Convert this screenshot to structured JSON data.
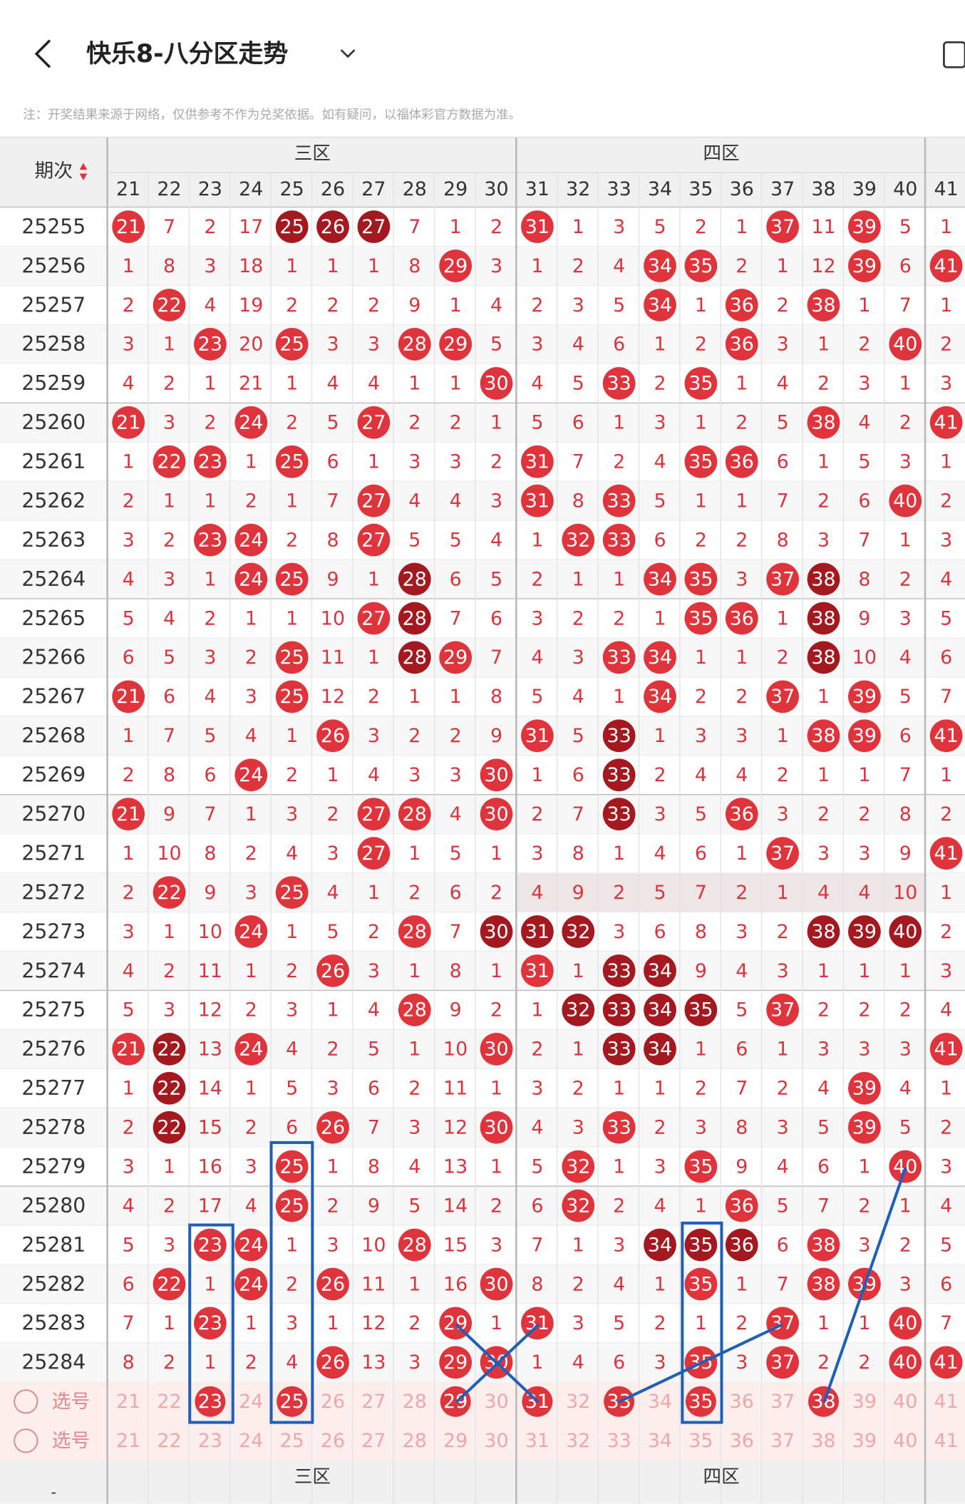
{
  "header": {
    "title": "快乐8-八分区走势",
    "note": "注：开奖结果来源于网络，仅供参考不作为兑奖依据。如有疑问，以福体彩官方数据为准。"
  },
  "table": {
    "period_label": "期次",
    "zones": [
      "三区",
      "四区"
    ],
    "columns": [
      21,
      22,
      23,
      24,
      25,
      26,
      27,
      28,
      29,
      30,
      31,
      32,
      33,
      34,
      35,
      36,
      37,
      38,
      39,
      40,
      41
    ],
    "rows": [
      {
        "period": "25255",
        "cells": [
          21,
          7,
          2,
          17,
          25,
          26,
          27,
          7,
          1,
          2,
          31,
          1,
          3,
          5,
          2,
          1,
          37,
          11,
          39,
          5,
          1
        ],
        "hits": [
          0,
          10,
          16,
          18
        ],
        "dark": [
          4,
          5,
          6
        ]
      },
      {
        "period": "25256",
        "cells": [
          1,
          8,
          3,
          18,
          1,
          1,
          1,
          8,
          29,
          3,
          1,
          2,
          4,
          34,
          35,
          2,
          1,
          12,
          39,
          6,
          41
        ],
        "hits": [
          8,
          13,
          14,
          18,
          20
        ],
        "dark": []
      },
      {
        "period": "25257",
        "cells": [
          2,
          22,
          4,
          19,
          2,
          2,
          2,
          9,
          1,
          4,
          2,
          3,
          5,
          34,
          1,
          36,
          2,
          38,
          1,
          7,
          1
        ],
        "hits": [
          1,
          13,
          15,
          17
        ],
        "dark": []
      },
      {
        "period": "25258",
        "cells": [
          3,
          1,
          23,
          20,
          25,
          3,
          3,
          28,
          29,
          5,
          3,
          4,
          6,
          1,
          2,
          36,
          3,
          1,
          2,
          40,
          2
        ],
        "hits": [
          2,
          4,
          7,
          8,
          15,
          19
        ],
        "dark": []
      },
      {
        "period": "25259",
        "cells": [
          4,
          2,
          1,
          21,
          1,
          4,
          4,
          1,
          1,
          30,
          4,
          5,
          33,
          2,
          35,
          1,
          4,
          2,
          3,
          1,
          3
        ],
        "hits": [
          9,
          12,
          14
        ],
        "dark": []
      },
      {
        "period": "25260",
        "cells": [
          21,
          3,
          2,
          24,
          2,
          5,
          27,
          2,
          2,
          1,
          5,
          6,
          1,
          3,
          1,
          2,
          5,
          38,
          4,
          2,
          41
        ],
        "hits": [
          0,
          3,
          6,
          17,
          20
        ],
        "dark": []
      },
      {
        "period": "25261",
        "cells": [
          1,
          22,
          23,
          1,
          25,
          6,
          1,
          3,
          3,
          2,
          31,
          7,
          2,
          4,
          35,
          36,
          6,
          1,
          5,
          3,
          1
        ],
        "hits": [
          1,
          2,
          4,
          10,
          14,
          15
        ],
        "dark": []
      },
      {
        "period": "25262",
        "cells": [
          2,
          1,
          1,
          2,
          1,
          7,
          27,
          4,
          4,
          3,
          31,
          8,
          33,
          5,
          1,
          1,
          7,
          2,
          6,
          40,
          2
        ],
        "hits": [
          6,
          10,
          12,
          19
        ],
        "dark": []
      },
      {
        "period": "25263",
        "cells": [
          3,
          2,
          23,
          24,
          2,
          8,
          27,
          5,
          5,
          4,
          1,
          32,
          33,
          6,
          2,
          2,
          8,
          3,
          7,
          1,
          3
        ],
        "hits": [
          2,
          3,
          6,
          11,
          12
        ],
        "dark": []
      },
      {
        "period": "25264",
        "cells": [
          4,
          3,
          1,
          24,
          25,
          9,
          1,
          28,
          6,
          5,
          2,
          1,
          1,
          34,
          35,
          3,
          37,
          38,
          8,
          2,
          4
        ],
        "hits": [
          3,
          4,
          13,
          14,
          16
        ],
        "dark": [
          7,
          17
        ]
      },
      {
        "period": "25265",
        "cells": [
          5,
          4,
          2,
          1,
          1,
          10,
          27,
          28,
          7,
          6,
          3,
          2,
          2,
          1,
          35,
          36,
          1,
          38,
          9,
          3,
          5
        ],
        "hits": [
          6,
          14,
          15
        ],
        "dark": [
          7,
          17
        ]
      },
      {
        "period": "25266",
        "cells": [
          6,
          5,
          3,
          2,
          25,
          11,
          1,
          28,
          29,
          7,
          4,
          3,
          33,
          34,
          1,
          1,
          2,
          38,
          10,
          4,
          6
        ],
        "hits": [
          4,
          8,
          12,
          13
        ],
        "dark": [
          7,
          17
        ]
      },
      {
        "period": "25267",
        "cells": [
          21,
          6,
          4,
          3,
          25,
          12,
          2,
          1,
          1,
          8,
          5,
          4,
          1,
          34,
          2,
          2,
          37,
          1,
          39,
          5,
          7
        ],
        "hits": [
          0,
          4,
          13,
          16,
          18
        ],
        "dark": []
      },
      {
        "period": "25268",
        "cells": [
          1,
          7,
          5,
          4,
          1,
          26,
          3,
          2,
          2,
          9,
          31,
          5,
          33,
          1,
          3,
          3,
          1,
          38,
          39,
          6,
          41
        ],
        "hits": [
          5,
          10,
          17,
          18,
          20
        ],
        "dark": [
          12
        ]
      },
      {
        "period": "25269",
        "cells": [
          2,
          8,
          6,
          24,
          2,
          1,
          4,
          3,
          3,
          30,
          1,
          6,
          33,
          2,
          4,
          4,
          2,
          1,
          1,
          7,
          1
        ],
        "hits": [
          3,
          9
        ],
        "dark": [
          12
        ]
      },
      {
        "period": "25270",
        "cells": [
          21,
          9,
          7,
          1,
          3,
          2,
          27,
          28,
          4,
          30,
          2,
          7,
          33,
          3,
          5,
          36,
          3,
          2,
          2,
          8,
          2
        ],
        "hits": [
          0,
          6,
          7,
          9,
          15
        ],
        "dark": [
          12
        ]
      },
      {
        "period": "25271",
        "cells": [
          1,
          10,
          8,
          2,
          4,
          3,
          27,
          1,
          5,
          1,
          3,
          8,
          1,
          4,
          6,
          1,
          37,
          3,
          3,
          9,
          41
        ],
        "hits": [
          6,
          16,
          20
        ],
        "dark": []
      },
      {
        "period": "25272",
        "cells": [
          2,
          22,
          9,
          3,
          25,
          4,
          1,
          2,
          6,
          2,
          4,
          9,
          2,
          5,
          7,
          2,
          1,
          4,
          4,
          10,
          1
        ],
        "hits": [
          1,
          4
        ],
        "dark": []
      },
      {
        "period": "25273",
        "cells": [
          3,
          1,
          10,
          24,
          1,
          5,
          2,
          28,
          7,
          30,
          31,
          32,
          3,
          6,
          8,
          3,
          2,
          38,
          39,
          40,
          2
        ],
        "hits": [
          3,
          7
        ],
        "dark": [
          9,
          10,
          11,
          17,
          18,
          19
        ]
      },
      {
        "period": "25274",
        "cells": [
          4,
          2,
          11,
          1,
          2,
          26,
          3,
          1,
          8,
          1,
          31,
          1,
          33,
          34,
          9,
          4,
          3,
          1,
          1,
          1,
          3
        ],
        "hits": [
          5,
          10
        ],
        "dark": [
          12,
          13
        ]
      },
      {
        "period": "25275",
        "cells": [
          5,
          3,
          12,
          2,
          3,
          1,
          4,
          28,
          9,
          2,
          1,
          32,
          33,
          34,
          35,
          5,
          37,
          2,
          2,
          2,
          4
        ],
        "hits": [
          7,
          16
        ],
        "dark": [
          11,
          12,
          13,
          14
        ]
      },
      {
        "period": "25276",
        "cells": [
          21,
          22,
          13,
          24,
          4,
          2,
          5,
          1,
          10,
          30,
          2,
          1,
          33,
          34,
          1,
          6,
          1,
          3,
          3,
          3,
          41
        ],
        "hits": [
          0,
          3,
          9,
          20
        ],
        "dark": [
          1,
          12,
          13
        ]
      },
      {
        "period": "25277",
        "cells": [
          1,
          22,
          14,
          1,
          5,
          3,
          6,
          2,
          11,
          1,
          3,
          2,
          1,
          1,
          2,
          7,
          2,
          4,
          39,
          4,
          1
        ],
        "hits": [
          18
        ],
        "dark": [
          1
        ]
      },
      {
        "period": "25278",
        "cells": [
          2,
          22,
          15,
          2,
          6,
          26,
          7,
          3,
          12,
          30,
          4,
          3,
          33,
          2,
          3,
          8,
          3,
          5,
          39,
          5,
          2
        ],
        "hits": [
          5,
          9,
          12,
          18
        ],
        "dark": [
          1
        ]
      },
      {
        "period": "25279",
        "cells": [
          3,
          1,
          16,
          3,
          25,
          1,
          8,
          4,
          13,
          1,
          5,
          32,
          1,
          3,
          35,
          9,
          4,
          6,
          1,
          40,
          3
        ],
        "hits": [
          4,
          11,
          14,
          19
        ],
        "dark": []
      },
      {
        "period": "25280",
        "cells": [
          4,
          2,
          17,
          4,
          25,
          2,
          9,
          5,
          14,
          2,
          6,
          32,
          2,
          4,
          1,
          36,
          5,
          7,
          2,
          1,
          4
        ],
        "hits": [
          4,
          11,
          15
        ],
        "dark": []
      },
      {
        "period": "25281",
        "cells": [
          5,
          3,
          23,
          24,
          1,
          3,
          10,
          28,
          15,
          3,
          7,
          1,
          3,
          34,
          35,
          36,
          6,
          38,
          3,
          2,
          5
        ],
        "hits": [
          2,
          3,
          7,
          17
        ],
        "dark": [
          13,
          14,
          15
        ]
      },
      {
        "period": "25282",
        "cells": [
          6,
          22,
          1,
          24,
          2,
          26,
          11,
          1,
          16,
          30,
          8,
          2,
          4,
          1,
          35,
          1,
          7,
          38,
          39,
          3,
          6
        ],
        "hits": [
          1,
          3,
          5,
          9,
          14,
          17,
          18
        ],
        "dark": []
      },
      {
        "period": "25283",
        "cells": [
          7,
          1,
          23,
          1,
          3,
          1,
          12,
          2,
          29,
          1,
          31,
          3,
          5,
          2,
          1,
          2,
          37,
          1,
          1,
          40,
          7
        ],
        "hits": [
          2,
          8,
          10,
          16,
          19
        ],
        "dark": []
      },
      {
        "period": "25284",
        "cells": [
          8,
          2,
          1,
          2,
          4,
          26,
          13,
          3,
          29,
          30,
          1,
          4,
          6,
          3,
          35,
          3,
          37,
          2,
          2,
          40,
          41
        ],
        "hits": [
          5,
          8,
          9,
          14,
          16,
          19,
          20
        ],
        "dark": []
      }
    ],
    "select_rows": [
      {
        "label": "选号",
        "picked": [
          2,
          4,
          8,
          10,
          12,
          14,
          17
        ]
      },
      {
        "label": "选号",
        "picked": []
      }
    ],
    "footer_left": "-"
  }
}
